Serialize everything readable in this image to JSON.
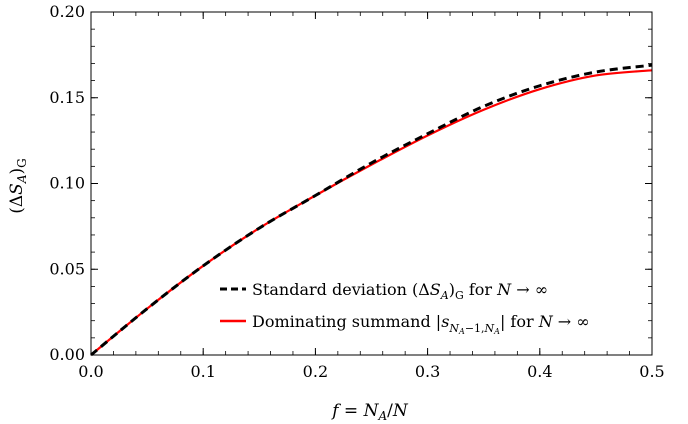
{
  "chart_data": {
    "type": "line",
    "xlabel": "f = N_A/N",
    "ylabel": "(ΔS_A)_G",
    "xlim": [
      0.0,
      0.5
    ],
    "ylim": [
      0.0,
      0.2
    ],
    "x_ticks": [
      "0.0",
      "0.1",
      "0.2",
      "0.3",
      "0.4",
      "0.5"
    ],
    "y_ticks": [
      "0.00",
      "0.05",
      "0.10",
      "0.15",
      "0.20"
    ],
    "grid": false,
    "legend_position": "bottom-right",
    "series": [
      {
        "name": "Standard deviation (ΔS_A)_G for N → ∞",
        "color": "#000000",
        "style": "dashed",
        "x": [
          0.0,
          0.05,
          0.1,
          0.15,
          0.2,
          0.25,
          0.3,
          0.35,
          0.4,
          0.45,
          0.5
        ],
        "y": [
          0.0,
          0.027,
          0.052,
          0.074,
          0.093,
          0.112,
          0.129,
          0.145,
          0.157,
          0.165,
          0.169
        ]
      },
      {
        "name": "Dominating summand |s_{N_A−1,N_A}| for N → ∞",
        "color": "#ff0000",
        "style": "solid",
        "x": [
          0.0,
          0.05,
          0.1,
          0.15,
          0.2,
          0.25,
          0.3,
          0.35,
          0.4,
          0.45,
          0.5
        ],
        "y": [
          0.0,
          0.027,
          0.052,
          0.074,
          0.093,
          0.111,
          0.128,
          0.143,
          0.155,
          0.163,
          0.166
        ]
      }
    ]
  }
}
